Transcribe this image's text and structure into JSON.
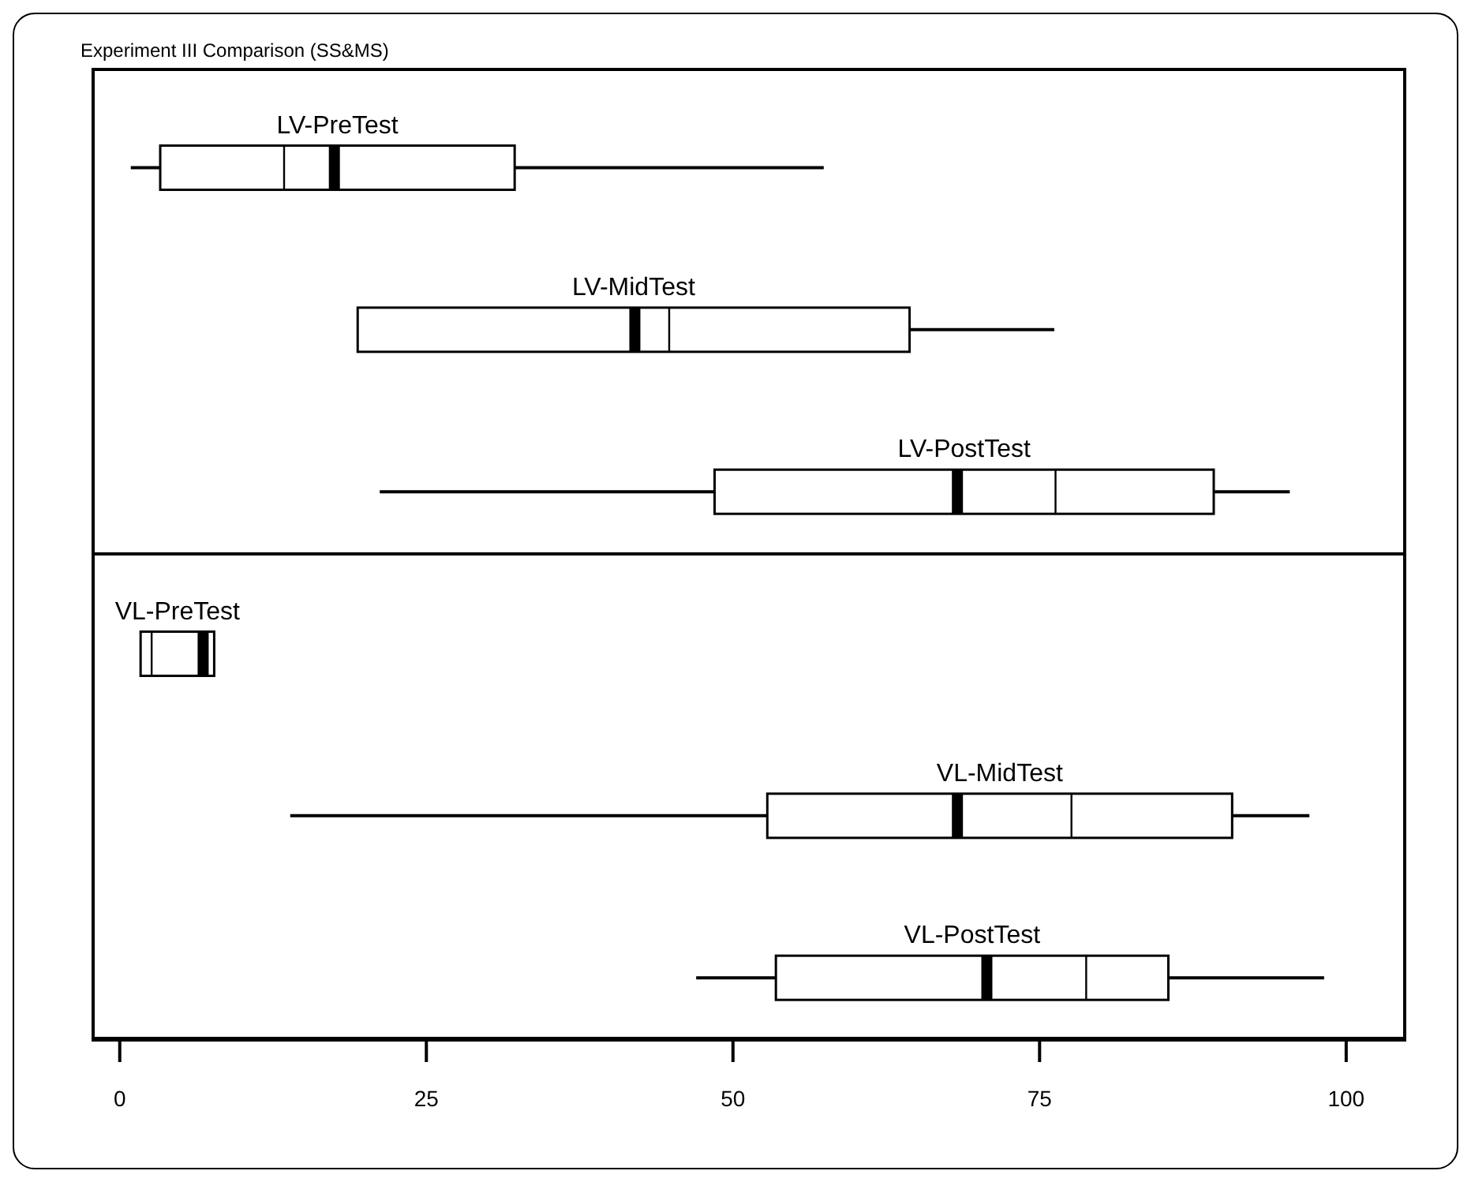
{
  "chart_data": {
    "type": "box",
    "title": "Experiment III Comparison (SS&MS)",
    "orientation": "horizontal",
    "categories": [
      "LV-PreTest",
      "LV-MidTest",
      "LV-PostTest",
      "VL-PreTest",
      "VL-MidTest",
      "VL-PostTest"
    ],
    "boxes": [
      {
        "low": 0.9,
        "q1": 3.3,
        "median": 17.5,
        "q3": 32.2,
        "high": 57.4,
        "mean": 13.4
      },
      {
        "low": 19.4,
        "q1": 19.4,
        "median": 42.0,
        "q3": 64.4,
        "high": 76.2,
        "mean": 44.8
      },
      {
        "low": 21.2,
        "q1": 48.5,
        "median": 68.3,
        "q3": 89.2,
        "high": 95.4,
        "mean": 76.3
      },
      {
        "low": 1.7,
        "q1": 1.7,
        "median": 6.8,
        "q3": 7.7,
        "high": 7.7,
        "mean": 2.6
      },
      {
        "low": 13.9,
        "q1": 52.8,
        "median": 68.3,
        "q3": 90.7,
        "high": 97.0,
        "mean": 77.6
      },
      {
        "low": 47.0,
        "q1": 53.5,
        "median": 70.7,
        "q3": 85.5,
        "high": 98.2,
        "mean": 78.8
      }
    ],
    "xlim": [
      -2.3,
      104.9
    ],
    "xticks": [
      0,
      25,
      50,
      75,
      100
    ]
  }
}
